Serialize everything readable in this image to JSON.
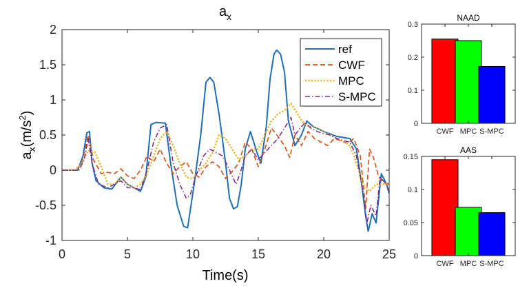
{
  "chart_data": [
    {
      "type": "line",
      "title": "a",
      "title_sub": "x",
      "xlabel": "Time(s)",
      "ylabel": "a",
      "ylabel_sub": "x",
      "ylabel_unit": "(m/s",
      "ylabel_sup": "2",
      "ylabel_close": ")",
      "xlim": [
        0,
        25
      ],
      "ylim": [
        -1,
        2
      ],
      "xticks": [
        0,
        5,
        10,
        15,
        20,
        25
      ],
      "yticks": [
        -1,
        -0.5,
        0,
        0.5,
        1,
        1.5,
        2
      ],
      "ytick_labels": [
        "-1",
        "-0.5",
        "0",
        "0.5",
        "1",
        "1.5",
        "2"
      ],
      "legend_position": "top-right",
      "series": [
        {
          "name": "ref",
          "color": "#1f6db3",
          "style": "solid",
          "points": [
            [
              0,
              0
            ],
            [
              1.2,
              0
            ],
            [
              1.6,
              0.2
            ],
            [
              1.9,
              0.53
            ],
            [
              2.1,
              0.55
            ],
            [
              2.3,
              0.1
            ],
            [
              2.6,
              -0.15
            ],
            [
              3.2,
              -0.25
            ],
            [
              3.8,
              -0.27
            ],
            [
              4.5,
              -0.1
            ],
            [
              5,
              -0.2
            ],
            [
              5.5,
              -0.25
            ],
            [
              6,
              -0.3
            ],
            [
              6.4,
              -0.1
            ],
            [
              6.8,
              0.65
            ],
            [
              7.2,
              0.68
            ],
            [
              7.9,
              0.67
            ],
            [
              8.3,
              0.1
            ],
            [
              8.8,
              -0.5
            ],
            [
              9.3,
              -0.8
            ],
            [
              9.6,
              -0.82
            ],
            [
              10.1,
              -0.2
            ],
            [
              10.6,
              0.5
            ],
            [
              11,
              1.25
            ],
            [
              11.3,
              1.32
            ],
            [
              11.6,
              1.25
            ],
            [
              12,
              0.8
            ],
            [
              12.5,
              0.1
            ],
            [
              12.8,
              -0.4
            ],
            [
              13.1,
              -0.55
            ],
            [
              13.4,
              -0.52
            ],
            [
              13.7,
              -0.2
            ],
            [
              14,
              0.3
            ],
            [
              14.4,
              0.55
            ],
            [
              14.9,
              0.25
            ],
            [
              15.2,
              0.1
            ],
            [
              15.6,
              0.6
            ],
            [
              15.9,
              1.3
            ],
            [
              16.2,
              1.65
            ],
            [
              16.4,
              1.71
            ],
            [
              16.7,
              1.65
            ],
            [
              17,
              1.4
            ],
            [
              17.3,
              0.7
            ],
            [
              17.8,
              0.35
            ],
            [
              18.3,
              0.5
            ],
            [
              18.7,
              0.7
            ],
            [
              19.2,
              0.62
            ],
            [
              20,
              0.55
            ],
            [
              21,
              0.48
            ],
            [
              22,
              0.45
            ],
            [
              22.5,
              0.3
            ],
            [
              22.9,
              -0.2
            ],
            [
              23.2,
              -0.65
            ],
            [
              23.4,
              -0.87
            ],
            [
              23.7,
              -0.62
            ],
            [
              24,
              -0.75
            ],
            [
              24.4,
              -0.05
            ],
            [
              24.8,
              -0.2
            ],
            [
              25,
              -0.33
            ]
          ]
        },
        {
          "name": "CWF",
          "color": "#d95319",
          "style": "dashed",
          "points": [
            [
              0,
              0
            ],
            [
              1,
              0
            ],
            [
              1.5,
              0.08
            ],
            [
              2,
              0.5
            ],
            [
              2.4,
              0.15
            ],
            [
              3,
              -0.05
            ],
            [
              3.5,
              -0.03
            ],
            [
              4,
              -0.05
            ],
            [
              4.5,
              0.02
            ],
            [
              5,
              -0.08
            ],
            [
              5.5,
              -0.12
            ],
            [
              6,
              0
            ],
            [
              6.5,
              0.2
            ],
            [
              7,
              0.12
            ],
            [
              7.5,
              0.3
            ],
            [
              8,
              0.1
            ],
            [
              8.5,
              -0.05
            ],
            [
              9,
              0.05
            ],
            [
              9.5,
              0.12
            ],
            [
              10,
              -0.05
            ],
            [
              10.5,
              -0.1
            ],
            [
              11,
              0.05
            ],
            [
              11.5,
              0.12
            ],
            [
              12,
              0.05
            ],
            [
              12.5,
              -0.12
            ],
            [
              13,
              -0.02
            ],
            [
              13.5,
              0.1
            ],
            [
              14,
              0.4
            ],
            [
              14.5,
              0.3
            ],
            [
              15,
              0.05
            ],
            [
              15.5,
              0.3
            ],
            [
              16,
              0.6
            ],
            [
              16.5,
              0.48
            ],
            [
              17,
              0.35
            ],
            [
              17.4,
              0.18
            ],
            [
              17.8,
              0.5
            ],
            [
              18.3,
              0.35
            ],
            [
              18.8,
              0.55
            ],
            [
              19.3,
              0.45
            ],
            [
              19.8,
              0.4
            ],
            [
              20.3,
              0.35
            ],
            [
              20.8,
              0.45
            ],
            [
              21.3,
              0.42
            ],
            [
              21.8,
              0.38
            ],
            [
              22.3,
              0.45
            ],
            [
              22.8,
              0.2
            ],
            [
              23.2,
              -0.55
            ],
            [
              23.5,
              0.3
            ],
            [
              23.8,
              0.18
            ],
            [
              24.2,
              -0.1
            ],
            [
              24.6,
              -0.18
            ],
            [
              25,
              -0.2
            ]
          ]
        },
        {
          "name": "MPC",
          "color": "#edb120",
          "style": "dotted",
          "points": [
            [
              0,
              0
            ],
            [
              1,
              0
            ],
            [
              1.5,
              0.1
            ],
            [
              2,
              0.28
            ],
            [
              2.5,
              0.26
            ],
            [
              3,
              0.05
            ],
            [
              3.5,
              -0.2
            ],
            [
              4,
              -0.2
            ],
            [
              4.5,
              -0.1
            ],
            [
              5,
              -0.2
            ],
            [
              5.5,
              -0.25
            ],
            [
              6,
              -0.2
            ],
            [
              6.5,
              -0.05
            ],
            [
              7,
              0.2
            ],
            [
              7.5,
              0.45
            ],
            [
              8,
              0.55
            ],
            [
              8.5,
              0.35
            ],
            [
              9,
              0.1
            ],
            [
              9.5,
              -0.1
            ],
            [
              10,
              -0.12
            ],
            [
              10.5,
              0
            ],
            [
              11,
              0.1
            ],
            [
              11.5,
              0.25
            ],
            [
              12,
              0.5
            ],
            [
              12.5,
              0.45
            ],
            [
              13,
              0.3
            ],
            [
              13.5,
              0.15
            ],
            [
              14,
              0.2
            ],
            [
              14.5,
              0.3
            ],
            [
              15,
              0.3
            ],
            [
              15.5,
              0.5
            ],
            [
              16,
              0.7
            ],
            [
              16.5,
              0.8
            ],
            [
              17,
              0.85
            ],
            [
              17.5,
              0.95
            ],
            [
              18,
              0.8
            ],
            [
              18.5,
              0.65
            ],
            [
              19,
              0.62
            ],
            [
              19.5,
              0.6
            ],
            [
              20,
              0.55
            ],
            [
              20.5,
              0.5
            ],
            [
              21,
              0.45
            ],
            [
              21.5,
              0.42
            ],
            [
              22,
              0.35
            ],
            [
              22.5,
              0.1
            ],
            [
              23,
              -0.2
            ],
            [
              23.5,
              -0.3
            ],
            [
              24,
              -0.2
            ],
            [
              24.5,
              -0.2
            ],
            [
              25,
              -0.2
            ]
          ]
        },
        {
          "name": "S-MPC",
          "color": "#7e2f8e",
          "style": "dashdot",
          "points": [
            [
              0,
              0
            ],
            [
              1.3,
              0
            ],
            [
              1.7,
              0.15
            ],
            [
              2,
              0.45
            ],
            [
              2.3,
              0.1
            ],
            [
              2.8,
              -0.2
            ],
            [
              3.5,
              -0.25
            ],
            [
              4,
              -0.2
            ],
            [
              4.5,
              -0.15
            ],
            [
              5,
              -0.25
            ],
            [
              5.5,
              -0.25
            ],
            [
              6,
              -0.28
            ],
            [
              6.5,
              0
            ],
            [
              7,
              0.4
            ],
            [
              7.5,
              0.6
            ],
            [
              8,
              0.65
            ],
            [
              8.5,
              0.1
            ],
            [
              9,
              -0.2
            ],
            [
              9.5,
              -0.4
            ],
            [
              9.8,
              -0.35
            ],
            [
              10.2,
              -0.1
            ],
            [
              10.8,
              0.2
            ],
            [
              11.3,
              0.3
            ],
            [
              11.8,
              0.25
            ],
            [
              12.3,
              0.2
            ],
            [
              12.8,
              0
            ],
            [
              13.3,
              -0.2
            ],
            [
              13.6,
              -0.05
            ],
            [
              14,
              0.2
            ],
            [
              14.5,
              0.3
            ],
            [
              15,
              0.15
            ],
            [
              15.5,
              0.25
            ],
            [
              16,
              0.35
            ],
            [
              16.5,
              0.45
            ],
            [
              17,
              0.6
            ],
            [
              17.5,
              0.75
            ],
            [
              17.8,
              0.5
            ],
            [
              18.2,
              0.6
            ],
            [
              18.6,
              0.68
            ],
            [
              19,
              0.6
            ],
            [
              19.5,
              0.55
            ],
            [
              20,
              0.52
            ],
            [
              20.5,
              0.5
            ],
            [
              21,
              0.45
            ],
            [
              21.5,
              0.42
            ],
            [
              22,
              0.4
            ],
            [
              22.5,
              0.2
            ],
            [
              23,
              -0.3
            ],
            [
              23.3,
              -0.75
            ],
            [
              23.6,
              -0.5
            ],
            [
              24,
              -0.65
            ],
            [
              24.3,
              -0.1
            ],
            [
              24.7,
              -0.18
            ],
            [
              25,
              -0.3
            ]
          ]
        }
      ]
    },
    {
      "type": "bar",
      "title": "NAAD",
      "categories": [
        "CWF",
        "MPC",
        "S-MPC"
      ],
      "values": [
        0.255,
        0.25,
        0.172
      ],
      "colors": [
        "#ff0000",
        "#00ff00",
        "#0000ff"
      ],
      "ylim": [
        0,
        0.3
      ],
      "yticks": [
        0,
        0.1,
        0.2,
        0.3
      ],
      "ytick_labels": [
        "0",
        "0.1",
        "0.2",
        "0.3"
      ]
    },
    {
      "type": "bar",
      "title": "AAS",
      "categories": [
        "CWF",
        "MPC",
        "S-MPC"
      ],
      "values": [
        0.145,
        0.073,
        0.065
      ],
      "colors": [
        "#ff0000",
        "#00ff00",
        "#0000ff"
      ],
      "ylim": [
        0,
        0.15
      ],
      "yticks": [
        0,
        0.05,
        0.1,
        0.15
      ],
      "ytick_labels": [
        "0",
        "0.05",
        "0.1",
        "0.15"
      ]
    }
  ]
}
